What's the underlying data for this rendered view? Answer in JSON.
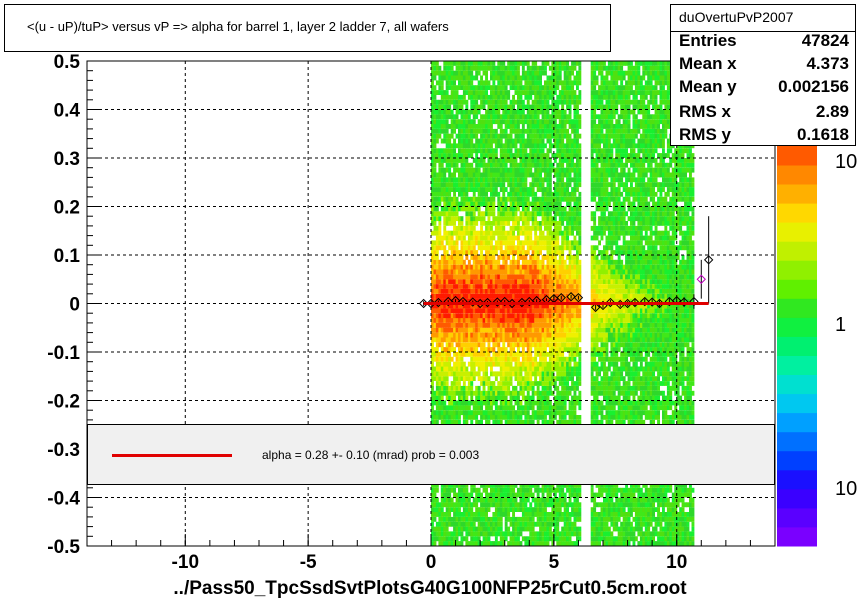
{
  "title": "<(u - uP)/tuP>  versus   vP => alpha for barrel 1, layer 2 ladder 7, all wafers",
  "stats": {
    "name": "duOvertuPvP2007",
    "rows": [
      {
        "key": "Entries",
        "value": "47824"
      },
      {
        "key": "Mean x",
        "value": "4.373"
      },
      {
        "key": "Mean y",
        "value": "0.002156"
      },
      {
        "key": "RMS x",
        "value": "2.89"
      },
      {
        "key": "RMS y",
        "value": "0.1618"
      }
    ]
  },
  "fit_label": "alpha =    0.28 +-  0.10 (mrad) prob = 0.003",
  "x_title": "../Pass50_TpcSsdSvtPlotsG40G100NFP25rCut0.5cm.root",
  "colors": {
    "fit_line": "#e00000",
    "profile_points": "#000000"
  },
  "chart_data": {
    "type": "heatmap",
    "xlim": [
      -14.0,
      14.0
    ],
    "ylim": [
      -0.5,
      0.5
    ],
    "grid": true,
    "x_ticks": [
      -10,
      -5,
      0,
      5,
      10
    ],
    "x_tick_labels": [
      "-10",
      "-5",
      "0",
      "5",
      "10"
    ],
    "y_ticks": [
      -0.5,
      -0.4,
      -0.3,
      -0.2,
      -0.1,
      0,
      0.1,
      0.2,
      0.3,
      0.4,
      0.5
    ],
    "y_tick_labels": [
      "-0.5",
      "-0.4",
      "-0.3",
      "-0.2",
      "-0.1",
      "0",
      "0.1",
      "0.2",
      "0.3",
      "0.4",
      "0.5"
    ],
    "z_scale": "log",
    "z_tick_labels": [
      "10",
      "1",
      "10"
    ],
    "occupied_x_range": [
      0.0,
      10.7
    ],
    "empty_x_bands": [
      [
        6.0,
        6.4
      ]
    ],
    "dense_core": {
      "x": [
        0.5,
        4.0
      ],
      "y": [
        -0.05,
        0.05
      ]
    },
    "profile": {
      "x": [
        -0.3,
        0.0,
        0.3,
        0.7,
        1.0,
        1.3,
        1.7,
        2.0,
        2.3,
        2.7,
        3.0,
        3.3,
        3.7,
        4.0,
        4.3,
        4.7,
        5.0,
        5.3,
        5.7,
        6.0,
        6.7,
        7.0,
        7.3,
        7.7,
        8.0,
        8.3,
        8.7,
        9.0,
        9.3,
        9.7,
        10.0,
        10.3,
        10.7,
        11.0,
        11.3
      ],
      "y": [
        0.0,
        0.0,
        0.002,
        0.004,
        0.006,
        0.004,
        0.003,
        0.0,
        0.002,
        0.003,
        0.004,
        0.0,
        0.002,
        0.004,
        0.006,
        0.008,
        0.01,
        0.012,
        0.014,
        0.012,
        -0.008,
        -0.004,
        0.002,
        -0.002,
        0.0,
        0.002,
        0.004,
        0.003,
        0.0,
        0.004,
        0.006,
        0.003,
        0.004,
        0.05,
        0.09
      ],
      "y_err": [
        0.005,
        0.004,
        0.004,
        0.003,
        0.003,
        0.003,
        0.003,
        0.003,
        0.003,
        0.003,
        0.003,
        0.003,
        0.003,
        0.003,
        0.003,
        0.003,
        0.004,
        0.004,
        0.004,
        0.004,
        0.005,
        0.005,
        0.005,
        0.005,
        0.005,
        0.006,
        0.006,
        0.006,
        0.006,
        0.007,
        0.008,
        0.01,
        0.015,
        0.04,
        0.09
      ]
    },
    "fit_line": {
      "x": [
        -0.3,
        11.3
      ],
      "y": [
        0.0,
        0.0
      ]
    }
  }
}
